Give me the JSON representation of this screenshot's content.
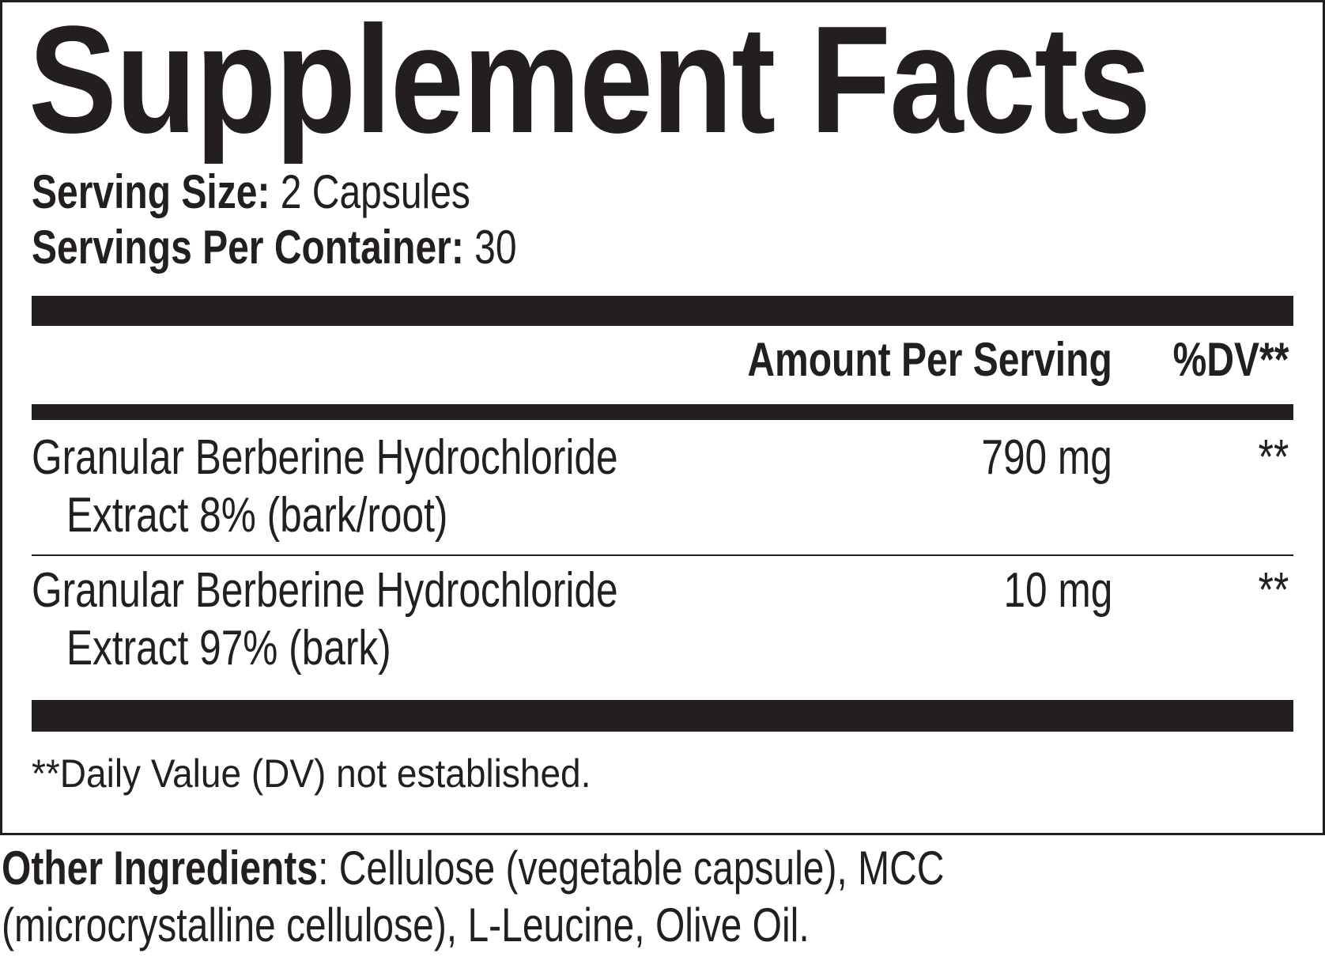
{
  "title": "Supplement Facts",
  "serving": {
    "size_label": "Serving Size:",
    "size_value": " 2 Capsules",
    "per_container_label": "Servings Per Container:",
    "per_container_value": " 30"
  },
  "header": {
    "amount": "Amount Per Serving",
    "dv": "%DV**"
  },
  "rows": [
    {
      "line1": "Granular Berberine Hydrochloride",
      "line2": "Extract 8% (bark/root)",
      "amount": "790 mg",
      "dv": "**"
    },
    {
      "line1": "Granular Berberine Hydrochloride",
      "line2": "Extract 97% (bark)",
      "amount": "10 mg",
      "dv": "**"
    }
  ],
  "footnote": "**Daily Value (DV) not established.",
  "other_ingredients": {
    "label": "Other Ingredients",
    "line1": ": Cellulose (vegetable capsule), MCC",
    "line2": "(microcrystalline cellulose), L-Leucine, Olive Oil."
  },
  "colors": {
    "ink": "#231f20",
    "background": "#ffffff"
  }
}
